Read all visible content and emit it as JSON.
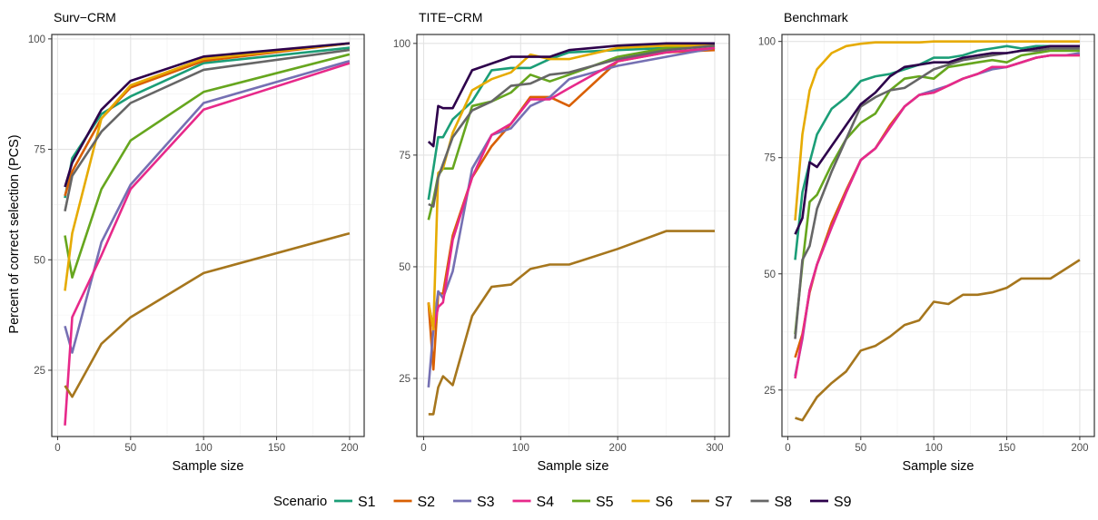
{
  "figure": {
    "y_axis_label": "Percent of correct selection (PCS)",
    "legend_title": "Scenario"
  },
  "series_colors": {
    "S1": "#1b9e77",
    "S2": "#d95f02",
    "S3": "#7570b3",
    "S4": "#e7298a",
    "S5": "#66a61e",
    "S6": "#e6ab02",
    "S7": "#a6761d",
    "S8": "#666666",
    "S9": "#2d004b"
  },
  "chart_data": [
    {
      "type": "line",
      "title": "Surv−CRM",
      "xlabel": "Sample size",
      "ylabel": "Percent of correct selection (PCS)",
      "xlim": [
        -4,
        210
      ],
      "ylim": [
        10,
        101
      ],
      "xticks": [
        0,
        50,
        100,
        150,
        200
      ],
      "yticks": [
        25,
        50,
        75,
        100
      ],
      "grid": true,
      "legend": "bottom",
      "series": [
        {
          "name": "S1",
          "x": [
            5,
            10,
            30,
            50,
            100,
            200
          ],
          "y": [
            64,
            73,
            83,
            87,
            94.5,
            98
          ]
        },
        {
          "name": "S2",
          "x": [
            5,
            10,
            30,
            50,
            100,
            200
          ],
          "y": [
            64.5,
            70,
            82,
            89,
            95,
            99
          ]
        },
        {
          "name": "S3",
          "x": [
            5,
            10,
            30,
            50,
            100,
            200
          ],
          "y": [
            35,
            29,
            54,
            67,
            85.5,
            95
          ]
        },
        {
          "name": "S4",
          "x": [
            5,
            10,
            30,
            50,
            100,
            200
          ],
          "y": [
            12.5,
            37,
            51,
            66,
            84,
            94.5
          ]
        },
        {
          "name": "S5",
          "x": [
            5,
            10,
            30,
            50,
            100,
            200
          ],
          "y": [
            55.5,
            46,
            66,
            77,
            88,
            96.5
          ]
        },
        {
          "name": "S6",
          "x": [
            5,
            10,
            30,
            50,
            100,
            200
          ],
          "y": [
            43,
            56,
            82,
            89.5,
            95.5,
            99
          ]
        },
        {
          "name": "S7",
          "x": [
            5,
            10,
            30,
            50,
            100,
            200
          ],
          "y": [
            21.5,
            19,
            31,
            37,
            47,
            56
          ]
        },
        {
          "name": "S8",
          "x": [
            5,
            10,
            30,
            50,
            100,
            200
          ],
          "y": [
            61,
            69,
            79,
            85.5,
            93,
            97.5
          ]
        },
        {
          "name": "S9",
          "x": [
            5,
            10,
            30,
            50,
            100,
            200
          ],
          "y": [
            66.5,
            72,
            84,
            90.5,
            96,
            99
          ]
        }
      ]
    },
    {
      "type": "line",
      "title": "TITE−CRM",
      "xlabel": "Sample size",
      "ylabel": "Percent of correct selection (PCS)",
      "xlim": [
        -7,
        315
      ],
      "ylim": [
        12,
        102
      ],
      "xticks": [
        0,
        100,
        200,
        300
      ],
      "yticks": [
        25,
        50,
        75,
        100
      ],
      "grid": true,
      "legend": "bottom",
      "series": [
        {
          "name": "S1",
          "x": [
            5,
            10,
            15,
            20,
            30,
            50,
            70,
            90,
            110,
            130,
            150,
            200,
            250,
            300
          ],
          "y": [
            65,
            72,
            79,
            79,
            83,
            87,
            94,
            94.5,
            94.5,
            96.5,
            98,
            98.5,
            99,
            99.5
          ]
        },
        {
          "name": "S2",
          "x": [
            5,
            10,
            15,
            20,
            30,
            50,
            70,
            90,
            110,
            130,
            150,
            200,
            250,
            300
          ],
          "y": [
            42,
            27,
            44,
            44,
            57,
            70,
            77,
            82,
            88,
            88,
            86,
            96,
            98,
            98.5
          ]
        },
        {
          "name": "S3",
          "x": [
            5,
            10,
            15,
            20,
            30,
            50,
            70,
            90,
            110,
            130,
            150,
            200,
            250,
            300
          ],
          "y": [
            23,
            36,
            44.5,
            43,
            49,
            72,
            79.5,
            81,
            86,
            88,
            92,
            95,
            97,
            99
          ]
        },
        {
          "name": "S4",
          "x": [
            5,
            10,
            15,
            20,
            30,
            50,
            70,
            90,
            110,
            130,
            150,
            200,
            250,
            300
          ],
          "y": [
            42,
            36,
            41,
            42,
            56,
            70,
            79.5,
            82,
            87.5,
            87.5,
            90,
            96,
            98,
            99
          ]
        },
        {
          "name": "S5",
          "x": [
            5,
            10,
            15,
            20,
            30,
            50,
            70,
            90,
            110,
            130,
            150,
            200,
            250,
            300
          ],
          "y": [
            60.5,
            65,
            70.5,
            72,
            72,
            86,
            87,
            89,
            93,
            91.5,
            93,
            97,
            99,
            99.5
          ]
        },
        {
          "name": "S6",
          "x": [
            5,
            10,
            15,
            20,
            30,
            50,
            70,
            90,
            110,
            130,
            150,
            200,
            250,
            300
          ],
          "y": [
            42,
            36,
            71,
            72,
            80,
            89.5,
            92,
            93.5,
            97.5,
            96.5,
            96.5,
            99,
            99.5,
            99.5
          ]
        },
        {
          "name": "S7",
          "x": [
            5,
            10,
            15,
            20,
            30,
            50,
            70,
            90,
            110,
            130,
            150,
            200,
            250,
            300
          ],
          "y": [
            17,
            17,
            23,
            25.5,
            23.5,
            39,
            45.5,
            46,
            49.5,
            50.5,
            50.5,
            54,
            58,
            58
          ]
        },
        {
          "name": "S8",
          "x": [
            5,
            10,
            15,
            20,
            30,
            50,
            70,
            90,
            110,
            130,
            150,
            200,
            250,
            300
          ],
          "y": [
            64,
            63.5,
            70,
            73,
            79,
            85,
            87,
            90.5,
            91,
            93,
            93.5,
            96.5,
            98.5,
            99.5
          ]
        },
        {
          "name": "S9",
          "x": [
            5,
            10,
            15,
            20,
            30,
            50,
            70,
            90,
            110,
            130,
            150,
            200,
            250,
            300
          ],
          "y": [
            78,
            77,
            86,
            85.5,
            85.5,
            94,
            95.5,
            97,
            97,
            97,
            98.5,
            99.5,
            100,
            100
          ]
        }
      ]
    },
    {
      "type": "line",
      "title": "Benchmark",
      "xlabel": "Sample size",
      "ylabel": "Percent of correct selection (PCS)",
      "xlim": [
        -4,
        210
      ],
      "ylim": [
        15,
        101.5
      ],
      "xticks": [
        0,
        50,
        100,
        150,
        200
      ],
      "yticks": [
        25,
        50,
        75,
        100
      ],
      "grid": true,
      "legend": "bottom",
      "series": [
        {
          "name": "S1",
          "x": [
            5,
            10,
            15,
            20,
            30,
            40,
            50,
            60,
            70,
            80,
            90,
            100,
            110,
            120,
            130,
            140,
            150,
            160,
            170,
            180,
            190,
            200
          ],
          "y": [
            53,
            67.5,
            74,
            80,
            85.5,
            88,
            91.5,
            92.5,
            93,
            94,
            95,
            96.5,
            96.5,
            97,
            98,
            98.5,
            99,
            98.5,
            99,
            99,
            99,
            99
          ]
        },
        {
          "name": "S2",
          "x": [
            5,
            10,
            15,
            20,
            30,
            40,
            50,
            60,
            70,
            80,
            90,
            100,
            110,
            120,
            130,
            140,
            150,
            160,
            170,
            180,
            190,
            200
          ],
          "y": [
            32,
            37,
            46,
            52,
            61,
            68,
            74.5,
            77,
            82,
            86,
            88.5,
            89,
            90.5,
            92,
            93,
            94.5,
            94.5,
            95.5,
            96.5,
            97,
            97,
            97
          ]
        },
        {
          "name": "S3",
          "x": [
            5,
            10,
            15,
            20,
            30,
            40,
            50,
            60,
            70,
            80,
            90,
            100,
            110,
            120,
            130,
            140,
            150,
            160,
            170,
            180,
            190,
            200
          ],
          "y": [
            28,
            36,
            46.5,
            52,
            60,
            67.5,
            74.5,
            77,
            81.5,
            86,
            88.5,
            89.5,
            90.5,
            92,
            93,
            94,
            94.5,
            95.5,
            96.5,
            97,
            97,
            97.5
          ]
        },
        {
          "name": "S4",
          "x": [
            5,
            10,
            15,
            20,
            30,
            40,
            50,
            60,
            70,
            80,
            90,
            100,
            110,
            120,
            130,
            140,
            150,
            160,
            170,
            180,
            190,
            200
          ],
          "y": [
            27.5,
            36.5,
            46.5,
            52,
            60,
            67.5,
            74.5,
            77,
            81.5,
            86,
            88.5,
            89,
            90.5,
            92,
            93,
            94.5,
            94.5,
            95.5,
            96.5,
            97,
            97,
            97
          ]
        },
        {
          "name": "S5",
          "x": [
            5,
            10,
            15,
            20,
            30,
            40,
            50,
            60,
            70,
            80,
            90,
            100,
            110,
            120,
            130,
            140,
            150,
            160,
            170,
            180,
            190,
            200
          ],
          "y": [
            37,
            52,
            65.5,
            67,
            73.5,
            79,
            82.5,
            84.5,
            89.5,
            92,
            92.5,
            92,
            94.5,
            95,
            95.5,
            96,
            95.5,
            97,
            97.5,
            98,
            98,
            98
          ]
        },
        {
          "name": "S6",
          "x": [
            5,
            10,
            15,
            20,
            30,
            40,
            50,
            60,
            70,
            80,
            90,
            100,
            110,
            120,
            130,
            140,
            150,
            160,
            170,
            180,
            190,
            200
          ],
          "y": [
            61.5,
            80,
            89.5,
            94,
            97.5,
            99,
            99.5,
            99.8,
            99.8,
            99.8,
            99.8,
            100,
            100,
            100,
            100,
            100,
            100,
            100,
            100,
            100,
            100,
            100
          ]
        },
        {
          "name": "S7",
          "x": [
            5,
            10,
            15,
            20,
            30,
            40,
            50,
            60,
            70,
            80,
            90,
            100,
            110,
            120,
            130,
            140,
            150,
            160,
            170,
            180,
            190,
            200
          ],
          "y": [
            19,
            18.5,
            21,
            23.5,
            26.5,
            29,
            33.5,
            34.5,
            36.5,
            39,
            40,
            44,
            43.5,
            45.5,
            45.5,
            46,
            47,
            49,
            49,
            49,
            51,
            53
          ]
        },
        {
          "name": "S8",
          "x": [
            5,
            10,
            15,
            20,
            30,
            40,
            50,
            60,
            70,
            80,
            90,
            100,
            110,
            120,
            130,
            140,
            150,
            160,
            170,
            180,
            190,
            200
          ],
          "y": [
            36,
            53,
            56,
            64,
            72,
            79,
            86,
            88,
            89.5,
            90,
            92,
            94,
            95,
            96,
            96.5,
            97,
            97.5,
            98,
            98,
            98.5,
            98.5,
            98.5
          ]
        },
        {
          "name": "S9",
          "x": [
            5,
            10,
            15,
            20,
            30,
            40,
            50,
            60,
            70,
            80,
            90,
            100,
            110,
            120,
            130,
            140,
            150,
            160,
            170,
            180,
            190,
            200
          ],
          "y": [
            58.5,
            62,
            74,
            73,
            77.5,
            82,
            86.5,
            89,
            92.5,
            94.5,
            95,
            95.5,
            95.5,
            96.5,
            97,
            97.5,
            97.5,
            98,
            98.5,
            99,
            99,
            99
          ]
        }
      ]
    }
  ]
}
